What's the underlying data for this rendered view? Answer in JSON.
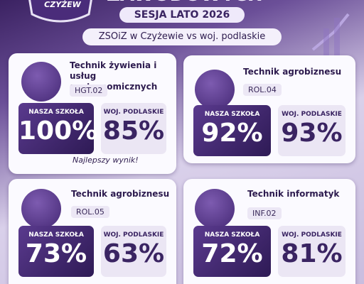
{
  "header": {
    "logo": "CZYŻEW",
    "title": "ZAWODOWYCH",
    "session": "SESJA LATO 2026",
    "subtitle": "ZSOiZ w Czyżewie vs woj. podlaskie"
  },
  "cards": [
    {
      "name": "Technik żywienia i usług gastronomicznych",
      "code": "HGT.02",
      "school_label": "NASZA SZKOŁA",
      "school": "100%",
      "region_label": "WOJ. PODLASKIE",
      "region": "85%",
      "note": "Najlepszy wynik!"
    },
    {
      "name": "Technik agrobiznesu",
      "code": "ROL.04",
      "school_label": "NASZA SZKOŁA",
      "school": "92%",
      "region_label": "WOJ. PODLASKIE",
      "region": "93%"
    },
    {
      "name": "Technik agrobiznesu",
      "code": "ROL.05",
      "school_label": "NASZA SZKOŁA",
      "school": "73%",
      "region_label": "WOJ. PODLASKIE",
      "region": "63%"
    },
    {
      "name": "Technik informatyk",
      "code": "INF.02",
      "school_label": "NASZA SZKOŁA",
      "school": "72%",
      "region_label": "WOJ. PODLASKIE",
      "region": "81%"
    }
  ]
}
